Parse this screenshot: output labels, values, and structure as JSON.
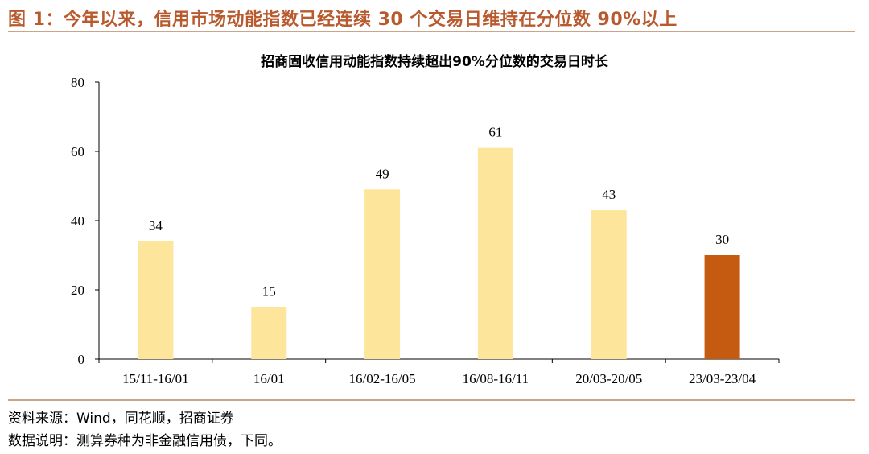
{
  "figure_title": "图 1：今年以来，信用市场动能指数已经连续 30 个交易日维持在分位数 90%以上",
  "footer": {
    "source": "资料来源：Wind，同花顺，招商证券",
    "note": "数据说明：测算券种为非金融信用债，下同。"
  },
  "colors": {
    "accent": "#b85a2e",
    "rule": "#c9a58c",
    "bar_default": "#fde59b",
    "bar_highlight": "#c55a11"
  },
  "chart_data": {
    "type": "bar",
    "title": "招商固收信用动能指数持续超出90%分位数的交易日时长",
    "xlabel": "",
    "ylabel": "",
    "categories": [
      "15/11-16/01",
      "16/01",
      "16/02-16/05",
      "16/08-16/11",
      "20/03-20/05",
      "23/03-23/04"
    ],
    "values": [
      34,
      15,
      49,
      61,
      43,
      30
    ],
    "highlight_index": 5,
    "ylim": [
      0,
      80
    ],
    "yticks": [
      0,
      20,
      40,
      60,
      80
    ],
    "grid": false,
    "legend": "none",
    "data_labels": true
  }
}
